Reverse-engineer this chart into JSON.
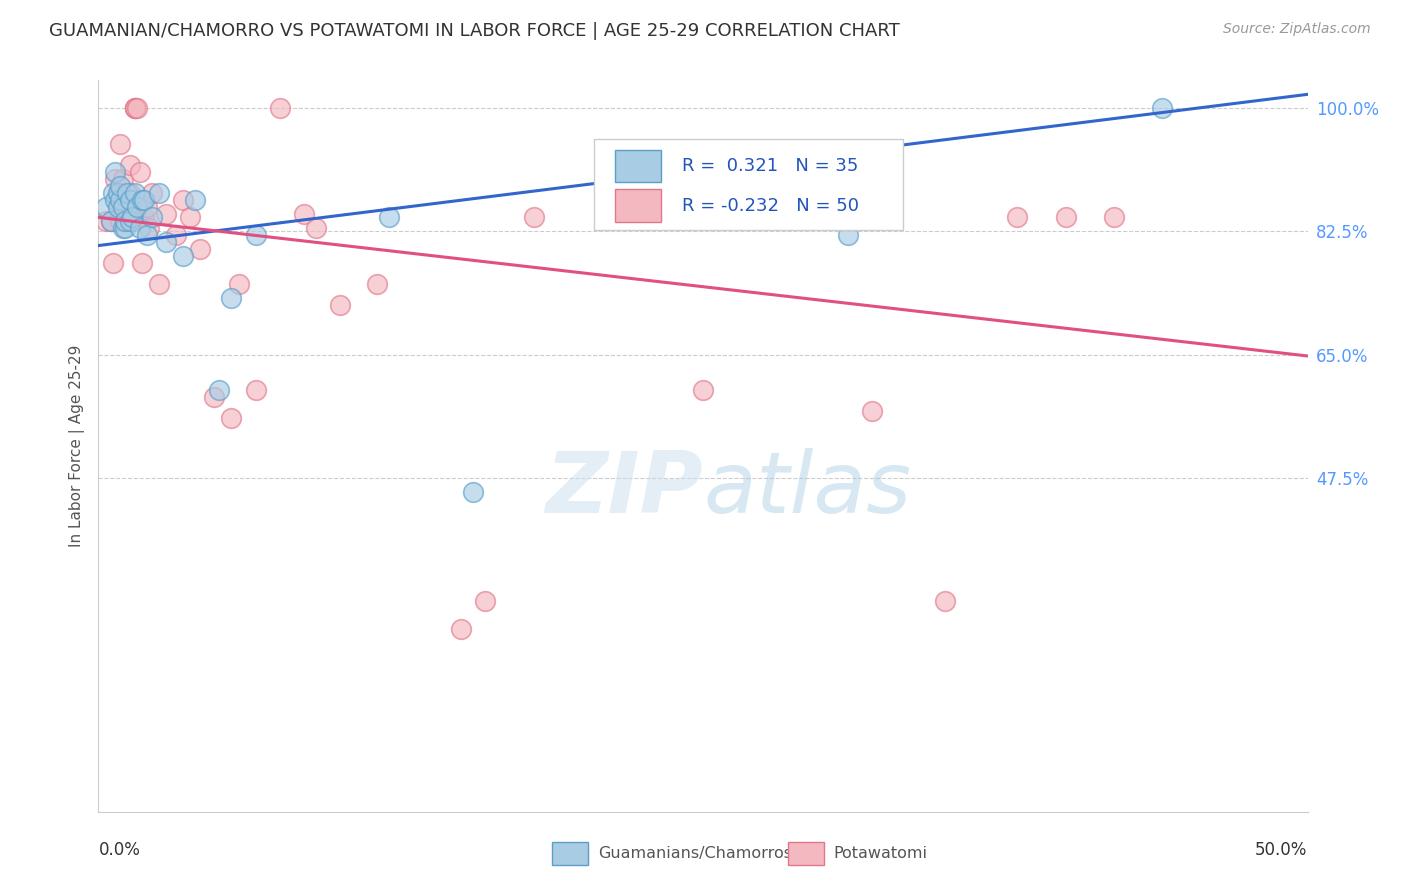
{
  "title": "GUAMANIAN/CHAMORRO VS POTAWATOMI IN LABOR FORCE | AGE 25-29 CORRELATION CHART",
  "source": "Source: ZipAtlas.com",
  "ylabel": "In Labor Force | Age 25-29",
  "xmin": 0.0,
  "xmax": 0.5,
  "ymin": 0.0,
  "ymax": 1.04,
  "r_blue": 0.321,
  "n_blue": 35,
  "r_pink": -0.232,
  "n_pink": 50,
  "legend_label_blue": "Guamanians/Chamorros",
  "legend_label_pink": "Potawatomi",
  "blue_color": "#a8cce4",
  "pink_color": "#f4b8c1",
  "blue_edge_color": "#5a9ec9",
  "pink_edge_color": "#e0788a",
  "blue_line_color": "#3366cc",
  "pink_line_color": "#e05080",
  "ytick_vals": [
    1.0,
    0.825,
    0.65,
    0.475
  ],
  "ytick_labels": [
    "100.0%",
    "82.5%",
    "65.0%",
    "47.5%"
  ],
  "blue_line_x0": 0.0,
  "blue_line_y0": 0.805,
  "blue_line_x1": 0.5,
  "blue_line_y1": 1.02,
  "pink_line_x0": 0.0,
  "pink_line_y0": 0.845,
  "pink_line_x1": 0.5,
  "pink_line_y1": 0.648,
  "blue_scatter_x": [
    0.003,
    0.005,
    0.006,
    0.007,
    0.007,
    0.008,
    0.008,
    0.009,
    0.009,
    0.01,
    0.01,
    0.011,
    0.011,
    0.012,
    0.013,
    0.013,
    0.014,
    0.015,
    0.016,
    0.017,
    0.018,
    0.019,
    0.02,
    0.022,
    0.025,
    0.028,
    0.035,
    0.04,
    0.05,
    0.055,
    0.065,
    0.12,
    0.155,
    0.31,
    0.44
  ],
  "blue_scatter_y": [
    0.86,
    0.84,
    0.88,
    0.87,
    0.91,
    0.86,
    0.88,
    0.87,
    0.89,
    0.83,
    0.86,
    0.83,
    0.84,
    0.88,
    0.87,
    0.84,
    0.845,
    0.88,
    0.86,
    0.83,
    0.87,
    0.87,
    0.82,
    0.845,
    0.88,
    0.81,
    0.79,
    0.87,
    0.6,
    0.73,
    0.82,
    0.845,
    0.455,
    0.82,
    1.0
  ],
  "pink_scatter_x": [
    0.003,
    0.005,
    0.006,
    0.007,
    0.008,
    0.009,
    0.009,
    0.01,
    0.01,
    0.011,
    0.012,
    0.013,
    0.013,
    0.014,
    0.015,
    0.015,
    0.015,
    0.016,
    0.017,
    0.018,
    0.019,
    0.02,
    0.021,
    0.022,
    0.025,
    0.028,
    0.032,
    0.035,
    0.038,
    0.042,
    0.048,
    0.055,
    0.058,
    0.065,
    0.075,
    0.085,
    0.09,
    0.1,
    0.115,
    0.15,
    0.16,
    0.18,
    0.22,
    0.25,
    0.3,
    0.32,
    0.35,
    0.38,
    0.4,
    0.42
  ],
  "pink_scatter_y": [
    0.84,
    0.84,
    0.78,
    0.9,
    0.88,
    0.84,
    0.95,
    0.85,
    0.9,
    0.84,
    0.86,
    0.88,
    0.92,
    0.84,
    1.0,
    1.0,
    1.0,
    1.0,
    0.91,
    0.78,
    0.845,
    0.86,
    0.83,
    0.88,
    0.75,
    0.85,
    0.82,
    0.87,
    0.845,
    0.8,
    0.59,
    0.56,
    0.75,
    0.6,
    1.0,
    0.85,
    0.83,
    0.72,
    0.75,
    0.26,
    0.3,
    0.845,
    0.845,
    0.6,
    0.845,
    0.57,
    0.3,
    0.845,
    0.845,
    0.845
  ]
}
